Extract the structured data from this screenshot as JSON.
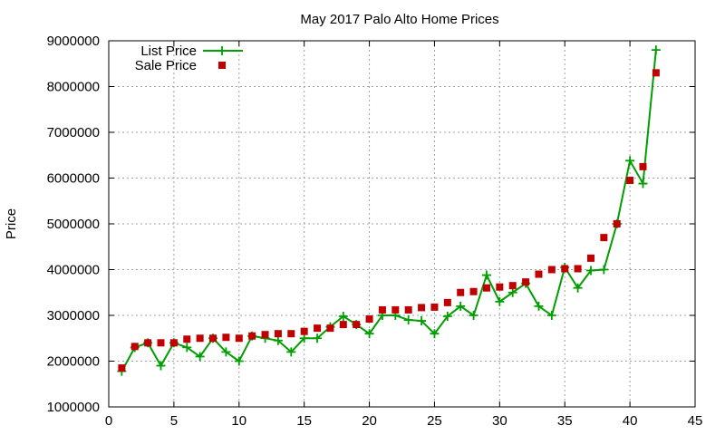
{
  "chart_data": {
    "type": "line",
    "title": "May 2017 Palo Alto Home Prices",
    "xlabel": "",
    "ylabel": "Price",
    "xlim": [
      0,
      45
    ],
    "ylim": [
      1000000,
      9000000
    ],
    "xticks": [
      0,
      5,
      10,
      15,
      20,
      25,
      30,
      35,
      40,
      45
    ],
    "yticks": [
      1000000,
      2000000,
      3000000,
      4000000,
      5000000,
      6000000,
      7000000,
      8000000,
      9000000
    ],
    "grid": true,
    "legend_position": "top-left",
    "x": [
      1,
      2,
      3,
      4,
      5,
      6,
      7,
      8,
      9,
      10,
      11,
      12,
      13,
      14,
      15,
      16,
      17,
      18,
      19,
      20,
      21,
      22,
      23,
      24,
      25,
      26,
      27,
      28,
      29,
      30,
      31,
      32,
      33,
      34,
      35,
      36,
      37,
      38,
      39,
      40,
      41,
      42
    ],
    "series": [
      {
        "name": "List Price",
        "style": "lines+points",
        "marker": "plus",
        "color": "#009e00",
        "values": [
          1780000,
          2300000,
          2400000,
          1900000,
          2400000,
          2300000,
          2100000,
          2500000,
          2200000,
          2000000,
          2550000,
          2500000,
          2450000,
          2200000,
          2500000,
          2500000,
          2750000,
          2980000,
          2800000,
          2600000,
          3000000,
          3000000,
          2900000,
          2880000,
          2600000,
          2980000,
          3200000,
          3000000,
          3880000,
          3300000,
          3500000,
          3700000,
          3200000,
          3000000,
          4050000,
          3600000,
          3980000,
          4000000,
          5000000,
          6380000,
          5880000,
          8800000
        ]
      },
      {
        "name": "Sale Price",
        "style": "points",
        "marker": "square",
        "color": "#c00000",
        "values": [
          1850000,
          2320000,
          2400000,
          2400000,
          2400000,
          2480000,
          2500000,
          2500000,
          2520000,
          2500000,
          2550000,
          2580000,
          2600000,
          2600000,
          2650000,
          2720000,
          2720000,
          2800000,
          2800000,
          2920000,
          3120000,
          3120000,
          3120000,
          3170000,
          3180000,
          3280000,
          3500000,
          3520000,
          3600000,
          3620000,
          3650000,
          3730000,
          3900000,
          4000000,
          4020000,
          4020000,
          4250000,
          4700000,
          5000000,
          5950000,
          6250000,
          8300000
        ]
      }
    ]
  }
}
